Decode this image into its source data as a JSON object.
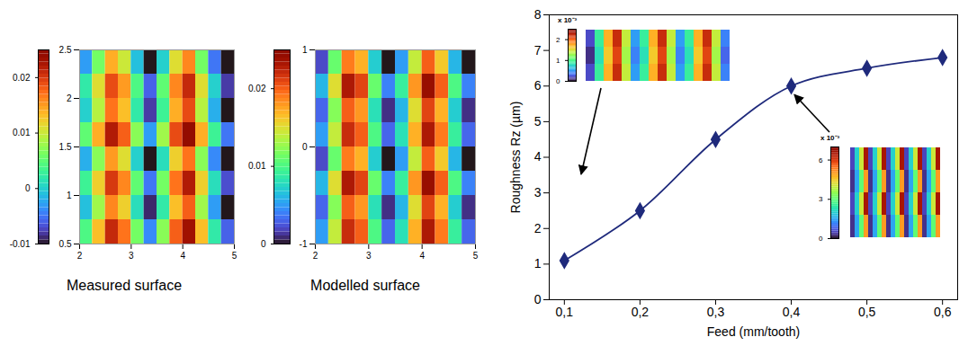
{
  "chart_data": [
    {
      "type": "heatmap",
      "title": "Measured surface",
      "color": "turbo",
      "xlim": [
        2,
        5
      ],
      "xticks": [
        2,
        3,
        4,
        5
      ],
      "ylim": [
        0.5,
        2.5
      ],
      "yticks": [
        0.5,
        1,
        1.5,
        2,
        2.5
      ],
      "x_edges": [
        2,
        2.25,
        2.5,
        2.75,
        3,
        3.25,
        3.5,
        3.75,
        4,
        4.25,
        4.5,
        4.75,
        5
      ],
      "y_edges": [
        0.5,
        0.75,
        1,
        1.25,
        1.5,
        1.75,
        2,
        2.25,
        2.5
      ],
      "zlim": [
        -0.01,
        0.025
      ],
      "zticks": [
        -0.01,
        0,
        0.01,
        0.02
      ],
      "z": [
        [
          0.004,
          0.013,
          0.021,
          0.017,
          0.006,
          -0.004,
          0.007,
          0.018,
          0.023,
          0.013,
          0.002,
          -0.006
        ],
        [
          -0.001,
          0.008,
          0.016,
          0.012,
          0.001,
          -0.009,
          0.002,
          0.013,
          0.018,
          0.008,
          -0.003,
          -0.01
        ],
        [
          0.003,
          0.012,
          0.02,
          0.016,
          0.005,
          -0.005,
          0.006,
          0.017,
          0.022,
          0.012,
          0.001,
          -0.007
        ],
        [
          -0.002,
          0.007,
          0.015,
          0.011,
          0.0,
          -0.01,
          0.001,
          0.012,
          0.017,
          0.007,
          -0.004,
          -0.01
        ],
        [
          0.005,
          0.014,
          0.022,
          0.018,
          0.007,
          -0.003,
          0.008,
          0.019,
          0.024,
          0.014,
          0.003,
          -0.005
        ],
        [
          0.0,
          0.009,
          0.017,
          0.013,
          0.002,
          -0.008,
          0.003,
          0.014,
          0.019,
          0.009,
          -0.002,
          -0.01
        ],
        [
          0.002,
          0.011,
          0.019,
          0.015,
          0.004,
          -0.006,
          0.005,
          0.016,
          0.021,
          0.011,
          0.0,
          -0.008
        ],
        [
          -0.003,
          0.006,
          0.014,
          0.01,
          -0.001,
          -0.01,
          0.0,
          0.011,
          0.016,
          0.006,
          -0.005,
          -0.01
        ]
      ]
    },
    {
      "type": "heatmap",
      "title": "Modelled surface",
      "color": "turbo",
      "xlim": [
        2,
        5
      ],
      "xticks": [
        2,
        3,
        4,
        5
      ],
      "ylim": [
        -1,
        1
      ],
      "yticks": [
        -1,
        0,
        1
      ],
      "x_edges": [
        2,
        2.25,
        2.5,
        2.75,
        3,
        3.25,
        3.5,
        3.75,
        4,
        4.25,
        4.5,
        4.75,
        5
      ],
      "y_edges": [
        -1,
        -0.75,
        -0.5,
        -0.25,
        0,
        0.25,
        0.5,
        0.75,
        1
      ],
      "zlim": [
        0,
        0.025
      ],
      "zticks": [
        0,
        0.01,
        0.02
      ],
      "z": [
        [
          0.005,
          0.014,
          0.022,
          0.02,
          0.01,
          0.003,
          0.008,
          0.017,
          0.023,
          0.019,
          0.009,
          0.003
        ],
        [
          0.003,
          0.012,
          0.02,
          0.018,
          0.008,
          0.001,
          0.006,
          0.015,
          0.021,
          0.017,
          0.007,
          0.001
        ],
        [
          0.006,
          0.015,
          0.023,
          0.021,
          0.011,
          0.004,
          0.009,
          0.018,
          0.024,
          0.02,
          0.01,
          0.004
        ],
        [
          0.002,
          0.011,
          0.019,
          0.017,
          0.007,
          0.0,
          0.005,
          0.014,
          0.02,
          0.016,
          0.006,
          0.0
        ],
        [
          0.005,
          0.014,
          0.022,
          0.02,
          0.01,
          0.003,
          0.008,
          0.017,
          0.023,
          0.019,
          0.009,
          0.003
        ],
        [
          0.003,
          0.012,
          0.02,
          0.018,
          0.008,
          0.001,
          0.006,
          0.015,
          0.021,
          0.017,
          0.007,
          0.001
        ],
        [
          0.006,
          0.015,
          0.023,
          0.021,
          0.011,
          0.004,
          0.009,
          0.018,
          0.024,
          0.02,
          0.01,
          0.004
        ],
        [
          0.002,
          0.011,
          0.019,
          0.017,
          0.007,
          0.0,
          0.005,
          0.014,
          0.02,
          0.016,
          0.006,
          0.0
        ]
      ]
    },
    {
      "type": "line",
      "xlabel": "Feed (mm/tooth)",
      "ylabel": "Roughness Rz (µm)",
      "color": "#1f2a7c",
      "marker": "diamond",
      "line_style": "smooth",
      "x": [
        0.1,
        0.2,
        0.3,
        0.4,
        0.5,
        0.6
      ],
      "values": [
        1.1,
        2.5,
        4.5,
        6.0,
        6.5,
        6.8
      ],
      "xlim": [
        0.08,
        0.62
      ],
      "xticks": [
        {
          "value": 0.1,
          "label": "0,1"
        },
        {
          "value": 0.2,
          "label": "0,2"
        },
        {
          "value": 0.3,
          "label": "0,3"
        },
        {
          "value": 0.4,
          "label": "0,4"
        },
        {
          "value": 0.5,
          "label": "0,5"
        },
        {
          "value": 0.6,
          "label": "0,6"
        }
      ],
      "ylim": [
        0,
        8
      ],
      "yticks": [
        0,
        1,
        2,
        3,
        4,
        5,
        6,
        7,
        8
      ],
      "insets": [
        {
          "type": "heatmap",
          "title": "x 10⁻³",
          "color": "turbo",
          "zlim": [
            0,
            2.5
          ],
          "zticks": [
            0,
            1,
            2
          ],
          "z": [
            [
              0.2,
              0.9,
              1.7,
              2.2,
              1.4,
              0.5,
              0.9,
              1.7,
              2.2,
              1.4,
              0.5,
              0.9,
              1.7,
              2.2,
              1.4,
              0.4
            ],
            [
              0.1,
              0.8,
              1.6,
              2.1,
              1.3,
              0.4,
              0.8,
              1.6,
              2.1,
              1.3,
              0.4,
              0.8,
              1.6,
              2.1,
              1.3,
              0.3
            ],
            [
              0.2,
              0.9,
              1.7,
              2.2,
              1.4,
              0.5,
              0.9,
              1.7,
              2.2,
              1.4,
              0.5,
              0.9,
              1.7,
              2.2,
              1.4,
              0.4
            ]
          ]
        },
        {
          "type": "heatmap",
          "title": "x 10⁻³",
          "color": "turbo",
          "zlim": [
            0,
            7
          ],
          "zticks": [
            0,
            3,
            6
          ],
          "z": [
            [
              0.5,
              2.0,
              4.0,
              6.5,
              0.5,
              2.0,
              4.0,
              6.5,
              0.5,
              2.0,
              4.0,
              6.5,
              0.5,
              2.0,
              4.0,
              6.5,
              0.5,
              2.0,
              4.0,
              6.5
            ],
            [
              0.3,
              1.5,
              3.0,
              5.0,
              0.3,
              1.5,
              3.0,
              5.0,
              0.3,
              1.5,
              3.0,
              5.0,
              0.3,
              1.5,
              3.0,
              5.0,
              0.3,
              1.5,
              3.0,
              5.0
            ],
            [
              0.5,
              2.0,
              4.0,
              6.5,
              0.5,
              2.0,
              4.0,
              6.5,
              0.5,
              2.0,
              4.0,
              6.5,
              0.5,
              2.0,
              4.0,
              6.5,
              0.5,
              2.0,
              4.0,
              6.5
            ],
            [
              0.3,
              1.5,
              3.0,
              5.0,
              0.3,
              1.5,
              3.0,
              5.0,
              0.3,
              1.5,
              3.0,
              5.0,
              0.3,
              1.5,
              3.0,
              5.0,
              0.3,
              1.5,
              3.0,
              5.0
            ]
          ]
        }
      ]
    }
  ]
}
